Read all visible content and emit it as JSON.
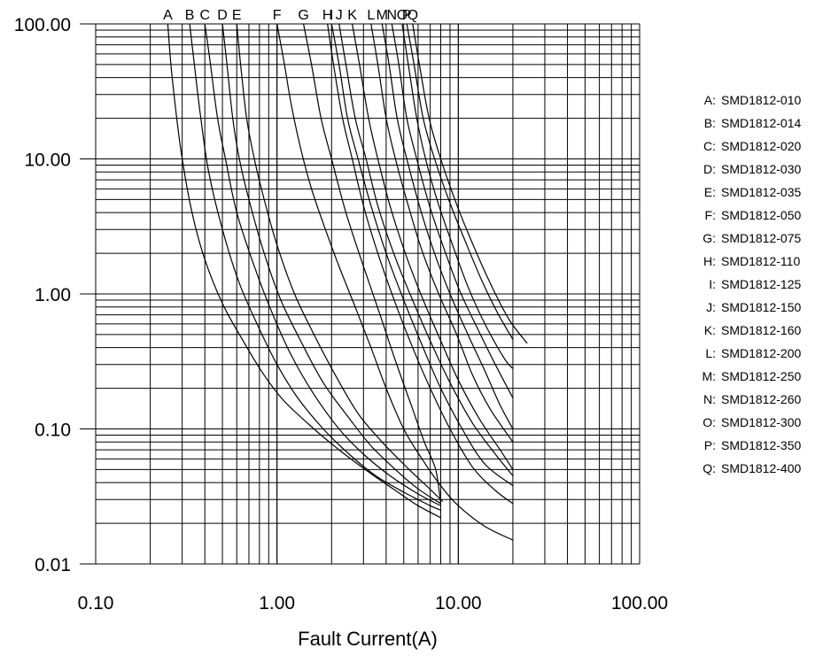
{
  "chart_data": {
    "type": "line",
    "title": "",
    "xlabel": "Fault Current(A)",
    "ylabel": "",
    "x_scale": "log",
    "y_scale": "log",
    "xlim": [
      0.1,
      100
    ],
    "ylim": [
      0.01,
      100
    ],
    "grid": true,
    "x_ticks": [
      {
        "value": 0.1,
        "label": "0.10"
      },
      {
        "value": 1,
        "label": "1.00"
      },
      {
        "value": 10,
        "label": "10.00"
      },
      {
        "value": 100,
        "label": "100.00"
      }
    ],
    "y_ticks": [
      {
        "value": 0.01,
        "label": "0.01"
      },
      {
        "value": 0.1,
        "label": "0.10"
      },
      {
        "value": 1,
        "label": "1.00"
      },
      {
        "value": 10,
        "label": "10.00"
      },
      {
        "value": 100,
        "label": "100.00"
      }
    ],
    "legend_position": "right",
    "legend": [
      {
        "letter": "A",
        "sep": ":",
        "name": "SMD1812-010"
      },
      {
        "letter": "B",
        "sep": ":",
        "name": "SMD1812-014"
      },
      {
        "letter": "C",
        "sep": ":",
        "name": "SMD1812-020"
      },
      {
        "letter": "D",
        "sep": ":",
        "name": "SMD1812-030"
      },
      {
        "letter": "E",
        "sep": ":",
        "name": "SMD1812-035"
      },
      {
        "letter": "F",
        "sep": ":",
        "name": "SMD1812-050"
      },
      {
        "letter": "G",
        "sep": ":",
        "name": "SMD1812-075"
      },
      {
        "letter": "H",
        "sep": ":",
        "name": "SMD1812-110"
      },
      {
        "letter": "I",
        "sep": ":",
        "name": "SMD1812-125"
      },
      {
        "letter": "J",
        "sep": ":",
        "name": "SMD1812-150"
      },
      {
        "letter": "K",
        "sep": ":",
        "name": "SMD1812-160"
      },
      {
        "letter": "L",
        "sep": ":",
        "name": "SMD1812-200"
      },
      {
        "letter": "M",
        "sep": ":",
        "name": "SMD1812-250"
      },
      {
        "letter": "N",
        "sep": ":",
        "name": "SMD1812-260"
      },
      {
        "letter": "O",
        "sep": ":",
        "name": "SMD1812-300"
      },
      {
        "letter": "P",
        "sep": ":",
        "name": "SMD1812-350"
      },
      {
        "letter": "Q",
        "sep": ":",
        "name": "SMD1812-400"
      }
    ],
    "series": [
      {
        "letter": "A",
        "points": [
          [
            0.25,
            100
          ],
          [
            0.26,
            50
          ],
          [
            0.28,
            20
          ],
          [
            0.3,
            10
          ],
          [
            0.34,
            4
          ],
          [
            0.4,
            1.8
          ],
          [
            0.5,
            0.85
          ],
          [
            0.65,
            0.45
          ],
          [
            0.85,
            0.25
          ],
          [
            1.1,
            0.16
          ],
          [
            1.6,
            0.1
          ],
          [
            2.2,
            0.07
          ],
          [
            3.2,
            0.048
          ],
          [
            4.5,
            0.035
          ],
          [
            6,
            0.027
          ],
          [
            8,
            0.022
          ]
        ]
      },
      {
        "letter": "B",
        "points": [
          [
            0.33,
            100
          ],
          [
            0.35,
            50
          ],
          [
            0.38,
            20
          ],
          [
            0.42,
            8
          ],
          [
            0.5,
            3
          ],
          [
            0.62,
            1.2
          ],
          [
            0.8,
            0.55
          ],
          [
            1,
            0.3
          ],
          [
            1.3,
            0.17
          ],
          [
            1.8,
            0.1
          ],
          [
            2.5,
            0.065
          ],
          [
            3.5,
            0.045
          ],
          [
            5,
            0.034
          ],
          [
            7,
            0.027
          ],
          [
            8,
            0.025
          ]
        ]
      },
      {
        "letter": "C",
        "points": [
          [
            0.4,
            100
          ],
          [
            0.43,
            50
          ],
          [
            0.47,
            20
          ],
          [
            0.52,
            10
          ],
          [
            0.6,
            4
          ],
          [
            0.75,
            1.6
          ],
          [
            0.95,
            0.7
          ],
          [
            1.2,
            0.35
          ],
          [
            1.6,
            0.18
          ],
          [
            2.2,
            0.1
          ],
          [
            3,
            0.065
          ],
          [
            4.2,
            0.045
          ],
          [
            6,
            0.033
          ],
          [
            8,
            0.027
          ]
        ]
      },
      {
        "letter": "D",
        "points": [
          [
            0.5,
            100
          ],
          [
            0.53,
            50
          ],
          [
            0.57,
            20
          ],
          [
            0.62,
            10
          ],
          [
            0.7,
            5
          ],
          [
            0.85,
            2
          ],
          [
            1.05,
            0.9
          ],
          [
            1.35,
            0.45
          ],
          [
            1.8,
            0.22
          ],
          [
            2.5,
            0.12
          ],
          [
            3.3,
            0.075
          ],
          [
            4.5,
            0.05
          ],
          [
            6,
            0.036
          ],
          [
            8,
            0.028
          ]
        ]
      },
      {
        "letter": "E",
        "points": [
          [
            0.6,
            100
          ],
          [
            0.63,
            50
          ],
          [
            0.68,
            20
          ],
          [
            0.75,
            10
          ],
          [
            0.85,
            5
          ],
          [
            1,
            2.3
          ],
          [
            1.25,
            1
          ],
          [
            1.6,
            0.5
          ],
          [
            2.1,
            0.25
          ],
          [
            2.8,
            0.13
          ],
          [
            3.8,
            0.08
          ],
          [
            5.2,
            0.052
          ],
          [
            6.8,
            0.037
          ],
          [
            8.2,
            0.029
          ]
        ]
      },
      {
        "letter": "F",
        "points": [
          [
            1,
            100
          ],
          [
            1.1,
            50
          ],
          [
            1.2,
            25
          ],
          [
            1.35,
            12
          ],
          [
            1.55,
            6
          ],
          [
            1.85,
            3
          ],
          [
            2.2,
            1.6
          ],
          [
            2.7,
            0.8
          ],
          [
            3.3,
            0.4
          ],
          [
            4,
            0.2
          ],
          [
            5,
            0.1
          ],
          [
            6.3,
            0.06
          ],
          [
            8,
            0.038
          ],
          [
            10,
            0.027
          ],
          [
            14,
            0.019
          ],
          [
            20,
            0.015
          ]
        ]
      },
      {
        "letter": "G",
        "points": [
          [
            1.4,
            100
          ],
          [
            1.55,
            50
          ],
          [
            1.75,
            20
          ],
          [
            2,
            10
          ],
          [
            2.4,
            4
          ],
          [
            3,
            1.6
          ],
          [
            3.7,
            0.7
          ],
          [
            4.5,
            0.32
          ],
          [
            5.5,
            0.15
          ],
          [
            6.5,
            0.08
          ],
          [
            7.5,
            0.05
          ],
          [
            8,
            0.028
          ]
        ]
      },
      {
        "letter": "H",
        "points": [
          [
            1.9,
            100
          ],
          [
            2.05,
            50
          ],
          [
            2.3,
            20
          ],
          [
            2.6,
            10
          ],
          [
            3,
            4.5
          ],
          [
            3.6,
            2
          ],
          [
            4.5,
            0.85
          ],
          [
            5.6,
            0.4
          ],
          [
            7,
            0.2
          ],
          [
            9,
            0.1
          ],
          [
            12,
            0.052
          ],
          [
            16,
            0.035
          ],
          [
            20,
            0.028
          ]
        ]
      },
      {
        "letter": "I",
        "points": [
          [
            2.0,
            100
          ],
          [
            2.2,
            50
          ],
          [
            2.45,
            20
          ],
          [
            2.8,
            10
          ],
          [
            3.3,
            4.5
          ],
          [
            4,
            2
          ],
          [
            5,
            0.9
          ],
          [
            6.3,
            0.42
          ],
          [
            8,
            0.2
          ],
          [
            10.5,
            0.1
          ],
          [
            14,
            0.055
          ],
          [
            20,
            0.038
          ]
        ]
      },
      {
        "letter": "J",
        "points": [
          [
            2.2,
            100
          ],
          [
            2.4,
            50
          ],
          [
            2.7,
            20
          ],
          [
            3.1,
            10
          ],
          [
            3.6,
            4.5
          ],
          [
            4.4,
            2
          ],
          [
            5.5,
            0.95
          ],
          [
            7,
            0.45
          ],
          [
            9,
            0.22
          ],
          [
            12,
            0.11
          ],
          [
            16,
            0.065
          ],
          [
            20,
            0.045
          ]
        ]
      },
      {
        "letter": "K",
        "points": [
          [
            2.6,
            100
          ],
          [
            2.85,
            50
          ],
          [
            3.2,
            20
          ],
          [
            3.6,
            10
          ],
          [
            4.2,
            4.5
          ],
          [
            5.1,
            2
          ],
          [
            6.3,
            0.95
          ],
          [
            8,
            0.45
          ],
          [
            10,
            0.23
          ],
          [
            13,
            0.12
          ],
          [
            17,
            0.07
          ],
          [
            20,
            0.05
          ]
        ]
      },
      {
        "letter": "L",
        "points": [
          [
            3.3,
            100
          ],
          [
            3.6,
            50
          ],
          [
            4,
            20
          ],
          [
            4.5,
            10
          ],
          [
            5.3,
            4.5
          ],
          [
            6.3,
            2.1
          ],
          [
            7.8,
            1
          ],
          [
            9.8,
            0.5
          ],
          [
            12,
            0.25
          ],
          [
            15,
            0.14
          ],
          [
            20,
            0.08
          ]
        ]
      },
      {
        "letter": "M",
        "points": [
          [
            3.8,
            100
          ],
          [
            4.15,
            50
          ],
          [
            4.6,
            20
          ],
          [
            5.2,
            10
          ],
          [
            6.1,
            4.5
          ],
          [
            7.3,
            2.1
          ],
          [
            9,
            1
          ],
          [
            11.3,
            0.5
          ],
          [
            14,
            0.27
          ],
          [
            17,
            0.15
          ],
          [
            20,
            0.1
          ]
        ]
      },
      {
        "letter": "N",
        "points": [
          [
            4.3,
            100
          ],
          [
            4.7,
            50
          ],
          [
            5.2,
            20
          ],
          [
            5.9,
            10
          ],
          [
            6.9,
            4.6
          ],
          [
            8.3,
            2.2
          ],
          [
            10.2,
            1.05
          ],
          [
            12.8,
            0.55
          ],
          [
            16,
            0.3
          ],
          [
            20,
            0.17
          ]
        ]
      },
      {
        "letter": "O",
        "points": [
          [
            4.9,
            100
          ],
          [
            5.3,
            50
          ],
          [
            5.9,
            20
          ],
          [
            6.6,
            10
          ],
          [
            7.7,
            4.8
          ],
          [
            9.3,
            2.3
          ],
          [
            11.4,
            1.1
          ],
          [
            14.2,
            0.58
          ],
          [
            18,
            0.33
          ],
          [
            20,
            0.28
          ]
        ]
      },
      {
        "letter": "P",
        "points": [
          [
            5.2,
            100
          ],
          [
            5.7,
            50
          ],
          [
            6.4,
            20
          ],
          [
            7.4,
            10
          ],
          [
            9,
            4.7
          ],
          [
            11,
            2.4
          ],
          [
            13.5,
            1.25
          ],
          [
            16.5,
            0.72
          ],
          [
            20,
            0.46
          ]
        ]
      },
      {
        "letter": "Q",
        "points": [
          [
            5.6,
            100
          ],
          [
            6.1,
            50
          ],
          [
            6.9,
            20
          ],
          [
            8,
            10
          ],
          [
            9.8,
            4.6
          ],
          [
            12,
            2.35
          ],
          [
            15,
            1.2
          ],
          [
            19,
            0.65
          ],
          [
            24,
            0.43
          ]
        ]
      }
    ]
  }
}
